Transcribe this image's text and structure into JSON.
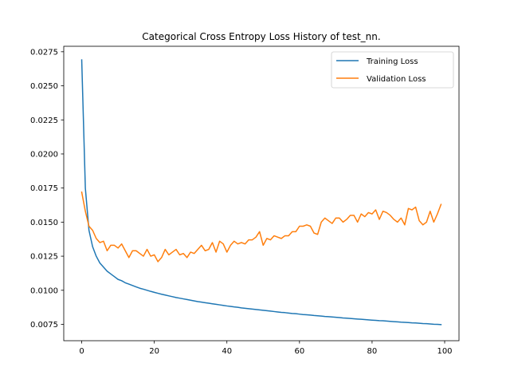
{
  "chart_data": {
    "type": "line",
    "title": "Categorical Cross Entropy Loss History of test_nn.",
    "xlabel": "",
    "ylabel": "",
    "xlim": [
      -4.95,
      103.95
    ],
    "ylim": [
      0.0063,
      0.0279
    ],
    "xticks": [
      0,
      20,
      40,
      60,
      80,
      100
    ],
    "xtick_labels": [
      "0",
      "20",
      "40",
      "60",
      "80",
      "100"
    ],
    "yticks": [
      0.0075,
      0.01,
      0.0125,
      0.015,
      0.0175,
      0.02,
      0.0225,
      0.025,
      0.0275
    ],
    "ytick_labels": [
      "0.0075",
      "0.0100",
      "0.0125",
      "0.0150",
      "0.0175",
      "0.0200",
      "0.0225",
      "0.0250",
      "0.0275"
    ],
    "grid": false,
    "legend": "top-right",
    "series": [
      {
        "name": "Training Loss",
        "color": "#1f77b4",
        "values": [
          0.0269,
          0.0175,
          0.0144,
          0.0132,
          0.0125,
          0.012,
          0.0117,
          0.0114,
          0.0112,
          0.011,
          0.0108,
          0.0107,
          0.01055,
          0.01045,
          0.01035,
          0.01025,
          0.01015,
          0.01008,
          0.01,
          0.00992,
          0.00985,
          0.00978,
          0.00971,
          0.00965,
          0.00959,
          0.00953,
          0.00947,
          0.00942,
          0.00937,
          0.00932,
          0.00927,
          0.00922,
          0.00917,
          0.00913,
          0.00909,
          0.00905,
          0.00901,
          0.00897,
          0.00893,
          0.00889,
          0.00885,
          0.00882,
          0.00878,
          0.00875,
          0.00871,
          0.00868,
          0.00865,
          0.00862,
          0.00859,
          0.00856,
          0.00853,
          0.0085,
          0.00847,
          0.00844,
          0.00841,
          0.00838,
          0.00836,
          0.00833,
          0.0083,
          0.00828,
          0.00825,
          0.00822,
          0.0082,
          0.00818,
          0.00815,
          0.00813,
          0.00811,
          0.00808,
          0.00806,
          0.00804,
          0.00802,
          0.008,
          0.00797,
          0.00795,
          0.00793,
          0.00791,
          0.00789,
          0.00787,
          0.00785,
          0.00783,
          0.00781,
          0.00779,
          0.00777,
          0.00776,
          0.00774,
          0.00772,
          0.0077,
          0.00768,
          0.00766,
          0.00765,
          0.00763,
          0.00761,
          0.0076,
          0.00758,
          0.00756,
          0.00755,
          0.00753,
          0.00751,
          0.0075,
          0.00748
        ]
      },
      {
        "name": "Validation Loss",
        "color": "#ff7f0e",
        "values": [
          0.0172,
          0.0158,
          0.0147,
          0.0144,
          0.0138,
          0.0135,
          0.0136,
          0.0129,
          0.0133,
          0.0133,
          0.0131,
          0.0134,
          0.0129,
          0.0124,
          0.0129,
          0.0129,
          0.0127,
          0.0125,
          0.013,
          0.0125,
          0.0126,
          0.0121,
          0.0124,
          0.013,
          0.0126,
          0.0128,
          0.013,
          0.0126,
          0.0127,
          0.0124,
          0.0128,
          0.0127,
          0.013,
          0.0133,
          0.0129,
          0.013,
          0.0135,
          0.0128,
          0.0136,
          0.0134,
          0.0128,
          0.0133,
          0.0136,
          0.0134,
          0.0135,
          0.0134,
          0.0137,
          0.0137,
          0.0139,
          0.0143,
          0.0133,
          0.0138,
          0.0137,
          0.014,
          0.0139,
          0.0138,
          0.014,
          0.014,
          0.0143,
          0.0143,
          0.0147,
          0.0147,
          0.0148,
          0.0147,
          0.0142,
          0.0141,
          0.015,
          0.0153,
          0.0151,
          0.0149,
          0.0153,
          0.0153,
          0.015,
          0.0152,
          0.0155,
          0.0155,
          0.015,
          0.0156,
          0.0154,
          0.0157,
          0.0156,
          0.0159,
          0.0152,
          0.0158,
          0.0157,
          0.0155,
          0.0152,
          0.015,
          0.0153,
          0.0148,
          0.016,
          0.0159,
          0.0161,
          0.0151,
          0.0148,
          0.015,
          0.0158,
          0.015,
          0.0156,
          0.0163
        ]
      }
    ]
  }
}
